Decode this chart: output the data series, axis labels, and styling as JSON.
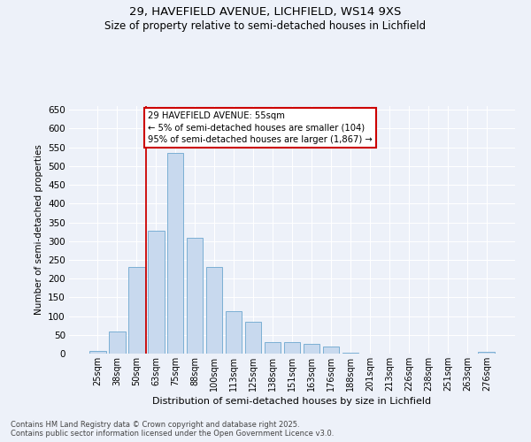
{
  "title_line1": "29, HAVEFIELD AVENUE, LICHFIELD, WS14 9XS",
  "title_line2": "Size of property relative to semi-detached houses in Lichfield",
  "xlabel": "Distribution of semi-detached houses by size in Lichfield",
  "ylabel": "Number of semi-detached properties",
  "categories": [
    "25sqm",
    "38sqm",
    "50sqm",
    "63sqm",
    "75sqm",
    "88sqm",
    "100sqm",
    "113sqm",
    "125sqm",
    "138sqm",
    "151sqm",
    "163sqm",
    "176sqm",
    "188sqm",
    "201sqm",
    "213sqm",
    "226sqm",
    "238sqm",
    "251sqm",
    "263sqm",
    "276sqm"
  ],
  "values": [
    8,
    60,
    230,
    328,
    535,
    308,
    230,
    113,
    85,
    30,
    30,
    25,
    18,
    3,
    1,
    1,
    0,
    1,
    0,
    0,
    4
  ],
  "bar_color": "#c8d9ee",
  "bar_edge_color": "#7bafd4",
  "vline_color": "#cc0000",
  "vline_x": 2.5,
  "ylim": [
    0,
    660
  ],
  "yticks": [
    0,
    50,
    100,
    150,
    200,
    250,
    300,
    350,
    400,
    450,
    500,
    550,
    600,
    650
  ],
  "background_color": "#edf1f9",
  "grid_color": "#d8e0ef",
  "annotation_title": "29 HAVEFIELD AVENUE: 55sqm",
  "annotation_line2": "← 5% of semi-detached houses are smaller (104)",
  "annotation_line3": "95% of semi-detached houses are larger (1,867) →",
  "footer_line1": "Contains HM Land Registry data © Crown copyright and database right 2025.",
  "footer_line2": "Contains public sector information licensed under the Open Government Licence v3.0."
}
